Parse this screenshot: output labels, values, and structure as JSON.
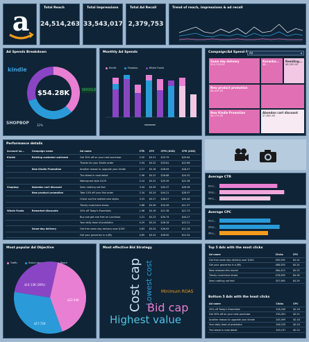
{
  "kpis": {
    "reach_title": "Total Reach",
    "reach_value": "24,514,263",
    "impressions_title": "Total Impressions",
    "impressions_value": "33,543,017",
    "recall_title": "Total Ad Recall",
    "recall_value": "2,379,753",
    "trend_title": "Trend of reach, impressions & ad recall"
  },
  "logo": {
    "glyph": "a",
    "icon": "amazon-logo-icon"
  },
  "donut": {
    "title": "Ad Spends Breakdown",
    "center_value": "$54.28K",
    "kindle_label": "kindle",
    "shopbop_label": "SHOPBOP",
    "whole_label": "WHOLE",
    "slice_label": "32%",
    "slices": [
      {
        "name": "Kindle",
        "fraction": 0.38,
        "color": "#e97fd3"
      },
      {
        "name": "Shopbop",
        "fraction": 0.32,
        "color": "#2a9bd8"
      },
      {
        "name": "Whole Foods",
        "fraction": 0.3,
        "color": "#8a45c4"
      }
    ]
  },
  "monthly": {
    "title": "Monthly Ad Spends",
    "legend": [
      {
        "name": "Kindle",
        "color": "#e97fd3"
      },
      {
        "name": "Shopbop",
        "color": "#2a9bd8"
      },
      {
        "name": "Whole Foods",
        "color": "#8a45c4"
      }
    ]
  },
  "campaign_spend": {
    "title": "Campaign/Ad Spend for",
    "select_value": "All",
    "tiles": [
      {
        "name": "Same day delivery",
        "value": "$10,700.00",
        "color": "#e06fb3"
      },
      {
        "name": "Kevanba...",
        "value": "$8,...",
        "color": "#e06fb3"
      },
      {
        "name": "Reelding...",
        "value": "$6,550.00",
        "color": "#f2c8e4"
      },
      {
        "name": "New product promotion",
        "value": "$8,430.00",
        "color": "#e06fb3"
      },
      {
        "name": "New Kindle Promotion",
        "value": "$6,175.00",
        "color": "#e06fb3"
      },
      {
        "name": "Abandon cart discount",
        "value": "$7,800.00",
        "color": "#f7eaf3"
      }
    ]
  },
  "performance": {
    "title": "Performance details",
    "headers": [
      "Account na...",
      "Campaign name",
      "Ad name",
      "CTR",
      "CPC",
      "CPM (USD)",
      "CPR (USD)"
    ],
    "rows": [
      [
        "Kindle",
        "Existing customer outreach",
        "Get 30% off on your next purchase",
        "2.50",
        "$0.21",
        "$29.79",
        "$20.84"
      ],
      [
        "",
        "",
        "Thanks for your Kindle order",
        "2.94",
        "$0.22",
        "$33.81",
        "$22.66"
      ],
      [
        "",
        "New Kindle Promotion",
        "Another reason to upgrade your kindle",
        "2.17",
        "$0.18",
        "$28.09",
        "$18.47"
      ],
      [
        "",
        "",
        "The latest in read detail",
        "1.96",
        "$0.22",
        "$28.68",
        "$24.32"
      ],
      [
        "",
        "",
        "Waterproof style $109",
        "3.14",
        "$0.22",
        "$29.39",
        "$22.38"
      ],
      [
        "Shopbop",
        "Abandon cart discount",
        "Seen nothing not feel",
        "3.34",
        "$0.29",
        "$45.37",
        "$26.58"
      ],
      [
        "",
        "New product promotion",
        "Take 10% off your first order",
        "2.34",
        "$0.24",
        "$44.21",
        "$28.97"
      ],
      [
        "",
        "",
        "Check out the hottest new styles",
        "3.23",
        "$0.27",
        "$46.07",
        "$20.48"
      ],
      [
        "",
        "",
        "Trendy must-have shoes",
        "2.88",
        "$0.26",
        "$34.28",
        "$21.37"
      ],
      [
        "Whole Foods",
        "Remarket discounts",
        "20% off Today's Essentials",
        "1.96",
        "$0.16",
        "$21.38",
        "$21.73"
      ],
      [
        "",
        "",
        "Buy one get one free on Lunchbox",
        "2.21",
        "$0.23",
        "$34.74",
        "$44.27"
      ],
      [
        "",
        "",
        "Your daily dose of probiotics",
        "4.29",
        "$0.24",
        "$28.16",
        "$22.21"
      ],
      [
        "",
        "Same-day delivery",
        "Get free same day delivery over $100",
        "4.83",
        "$0.24",
        "$26.09",
        "$12.18"
      ],
      [
        "",
        "",
        "Get your groceries in a jiffy",
        "4.85",
        "$0.24",
        "$28.00",
        "$12.54"
      ]
    ]
  },
  "icons": {
    "camera_video": "video-camera-icon",
    "camera": "camera-icon"
  },
  "ctr": {
    "title": "Average CTR",
    "labels": [
      "Kind...",
      "Shop...",
      "Who..."
    ],
    "values": [
      2.5,
      2.8,
      2.2
    ]
  },
  "cpc": {
    "title": "Average CPC",
    "labels": [
      "Kind...",
      "Shop...",
      "Who..."
    ],
    "values": [
      0.22,
      0.26,
      0.21
    ]
  },
  "objective": {
    "title": "Most popular Ad Objective",
    "legend": [
      {
        "name": "Traffic",
        "color": "#e97fd3"
      },
      {
        "name": "Brand awareness",
        "color": "#2a9bd8"
      },
      {
        "name": "Reach",
        "color": "#8a45c4"
      }
    ],
    "labels": [
      "$14.13K (26%)",
      "$22.44K",
      "$17.71K"
    ],
    "slices": [
      {
        "name": "Reach",
        "fraction": 0.26,
        "color": "#8a45c4"
      },
      {
        "name": "Traffic",
        "fraction": 0.41,
        "color": "#e97fd3"
      },
      {
        "name": "Brand awareness",
        "fraction": 0.33,
        "color": "#2a9bd8"
      }
    ]
  },
  "strategy": {
    "title": "Most effective Bid Strategy",
    "words": [
      "Cost cap",
      "Lowest cost",
      "Minimum ROAS",
      "Bid cap",
      "Highest value"
    ]
  },
  "top5": {
    "title": "Top 5 Ads with the most clicks",
    "headers": [
      "Ad name",
      "Clicks",
      "CPC"
    ],
    "rows": [
      [
        "Get free same day delivery over $100",
        "490,095",
        "$0.24"
      ],
      [
        "Get your groceries in a jiffy",
        "486,055",
        "$0.24"
      ],
      [
        "New releases this month",
        "484,413",
        "$0.23"
      ],
      [
        "Trendy must-have shoes",
        "478,099",
        "$0.26"
      ],
      [
        "Seen nothing not feel",
        "357,560",
        "$0.29"
      ]
    ]
  },
  "bottom5": {
    "title": "Bottom 5 Ads with the least clicks",
    "headers": [
      "Ad name",
      "Clicks",
      "CPC"
    ],
    "rows": [
      [
        "20% off Today's Essentials",
        "226,160",
        "$0.16"
      ],
      [
        "Get 30% off on your next purchase",
        "230,451",
        "$0.21"
      ],
      [
        "Another reason to upgrade your kindle",
        "245,099",
        "$0.18"
      ],
      [
        "Your daily dose of probiotics",
        "246,235",
        "$0.24"
      ],
      [
        "The latest in read detail",
        "249,197",
        "$0.22"
      ]
    ]
  }
}
